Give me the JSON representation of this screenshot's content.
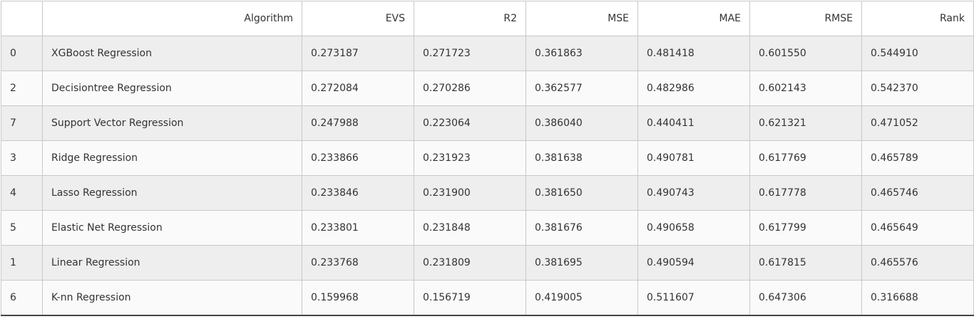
{
  "table": {
    "headers": [
      "",
      "Algorithm",
      "EVS",
      "R2",
      "MSE",
      "MAE",
      "RMSE",
      "Rank"
    ],
    "rows": [
      [
        "0",
        "XGBoost Regression",
        "0.273187",
        "0.271723",
        "0.361863",
        "0.481418",
        "0.601550",
        "0.544910"
      ],
      [
        "2",
        "Decisiontree Regression",
        "0.272084",
        "0.270286",
        "0.362577",
        "0.482986",
        "0.602143",
        "0.542370"
      ],
      [
        "7",
        "Support Vector Regression",
        "0.247988",
        "0.223064",
        "0.386040",
        "0.440411",
        "0.621321",
        "0.471052"
      ],
      [
        "3",
        "Ridge Regression",
        "0.233866",
        "0.231923",
        "0.381638",
        "0.490781",
        "0.617769",
        "0.465789"
      ],
      [
        "4",
        "Lasso Regression",
        "0.233846",
        "0.231900",
        "0.381650",
        "0.490743",
        "0.617778",
        "0.465746"
      ],
      [
        "5",
        "Elastic Net Regression",
        "0.233801",
        "0.231848",
        "0.381676",
        "0.490658",
        "0.617799",
        "0.465649"
      ],
      [
        "1",
        "Linear Regression",
        "0.233768",
        "0.231809",
        "0.381695",
        "0.490594",
        "0.617815",
        "0.465576"
      ],
      [
        "6",
        "K-nn Regression",
        "0.159968",
        "0.156719",
        "0.419005",
        "0.511607",
        "0.647306",
        "0.316688"
      ]
    ]
  }
}
